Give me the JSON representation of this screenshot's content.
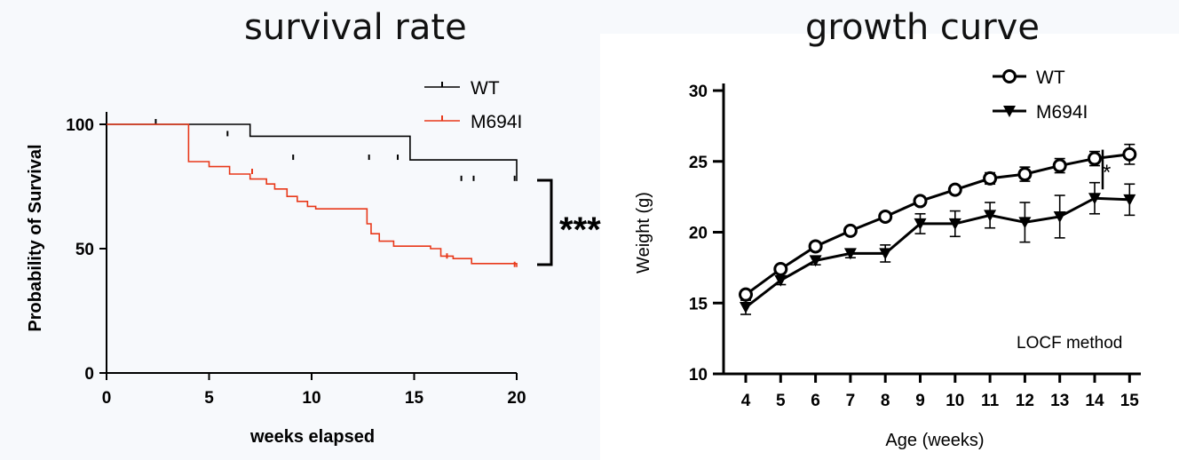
{
  "titles": {
    "left": "survival rate",
    "right": "growth curve"
  },
  "chart_data": [
    {
      "type": "line",
      "subtype": "kaplan-meier",
      "title": "survival rate",
      "xlabel": "weeks elapsed",
      "ylabel": "Probability of Survival",
      "xlim": [
        0,
        20
      ],
      "ylim": [
        0,
        105
      ],
      "xticks": [
        0,
        5,
        10,
        15,
        20
      ],
      "yticks": [
        0,
        50,
        100
      ],
      "legend_position": "top-right",
      "series": [
        {
          "name": "WT",
          "color": "#000000",
          "steps": [
            [
              0,
              100
            ],
            [
              7,
              95.2
            ],
            [
              14.8,
              85.7
            ],
            [
              20,
              77.2
            ]
          ],
          "start_value": 100,
          "censor_marks": [
            [
              2.4,
              100
            ],
            [
              5.9,
              95.2
            ],
            [
              9.1,
              85.7
            ],
            [
              12.8,
              85.7
            ],
            [
              14.2,
              85.7
            ],
            [
              17.3,
              77.2
            ],
            [
              17.9,
              77.2
            ],
            [
              19.9,
              77.2
            ]
          ]
        },
        {
          "name": "M694I",
          "color": "#e8391a",
          "steps": [
            [
              0,
              100
            ],
            [
              4,
              85
            ],
            [
              5,
              83
            ],
            [
              6,
              80
            ],
            [
              7,
              78
            ],
            [
              7.8,
              76
            ],
            [
              8.2,
              74
            ],
            [
              8.8,
              71
            ],
            [
              9.3,
              69
            ],
            [
              9.8,
              67
            ],
            [
              10.2,
              66
            ],
            [
              12.7,
              60
            ],
            [
              12.9,
              56
            ],
            [
              13.3,
              53
            ],
            [
              14,
              51
            ],
            [
              15.8,
              50
            ],
            [
              16.3,
              47
            ],
            [
              16.9,
              46
            ],
            [
              17.8,
              44
            ],
            [
              20,
              42.6
            ]
          ],
          "start_value": 100,
          "censor_marks": [
            [
              7.1,
              80
            ],
            [
              16.6,
              46
            ],
            [
              19.9,
              42.6
            ]
          ]
        }
      ],
      "annotation": {
        "text": "***",
        "between": [
          "WT",
          "M694I"
        ]
      }
    },
    {
      "type": "line",
      "title": "growth curve",
      "xlabel": "Age (weeks)",
      "ylabel": "Weight (g)",
      "x": [
        4,
        5,
        6,
        7,
        8,
        9,
        10,
        11,
        12,
        13,
        14,
        15
      ],
      "ylim": [
        10,
        30
      ],
      "yticks": [
        10,
        15,
        20,
        25,
        30
      ],
      "legend_position": "top-left",
      "series": [
        {
          "name": "WT",
          "marker": "open-circle",
          "values": [
            15.6,
            17.4,
            19.0,
            20.1,
            21.1,
            22.2,
            23.0,
            23.8,
            24.1,
            24.7,
            25.2,
            25.5
          ],
          "errors": [
            0.2,
            0.2,
            0.2,
            0.2,
            0.2,
            0.3,
            0.3,
            0.4,
            0.5,
            0.5,
            0.5,
            0.7
          ]
        },
        {
          "name": "M694I",
          "marker": "filled-down-triangle",
          "values": [
            14.7,
            16.6,
            18.0,
            18.5,
            18.5,
            20.6,
            20.6,
            21.2,
            20.7,
            21.1,
            22.4,
            22.3
          ],
          "errors": [
            0.5,
            0.3,
            0.3,
            0.3,
            0.6,
            0.7,
            0.9,
            0.9,
            1.4,
            1.5,
            1.1,
            1.1
          ]
        }
      ],
      "annotation": {
        "text": "*",
        "at_week": 14
      },
      "note": "LOCF method"
    }
  ]
}
